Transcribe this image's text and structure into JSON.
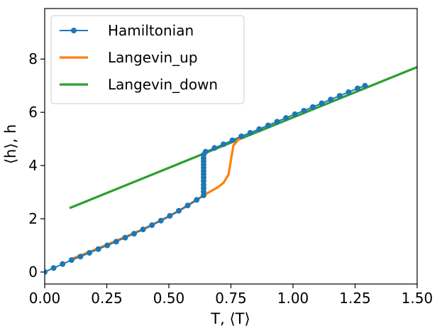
{
  "chart_data": {
    "type": "line",
    "title": "",
    "xlabel": "T, ⟨T⟩",
    "ylabel": "⟨h⟩, h",
    "xlim": [
      0.0,
      1.5
    ],
    "ylim": [
      -0.45,
      9.9
    ],
    "xticks": [
      0.0,
      0.25,
      0.5,
      0.75,
      1.0,
      1.25,
      1.5
    ],
    "xtick_labels": [
      "0.00",
      "0.25",
      "0.50",
      "0.75",
      "1.00",
      "1.25",
      "1.50"
    ],
    "yticks": [
      0,
      2,
      4,
      6,
      8
    ],
    "ytick_labels": [
      "0",
      "2",
      "4",
      "6",
      "8"
    ],
    "grid": false,
    "legend_position": "top-left",
    "series": [
      {
        "name": "Hamiltonian",
        "color": "#1f77b4",
        "marker": "circle",
        "x": [
          0.0,
          0.036,
          0.072,
          0.108,
          0.144,
          0.18,
          0.216,
          0.252,
          0.288,
          0.324,
          0.36,
          0.396,
          0.432,
          0.468,
          0.504,
          0.54,
          0.576,
          0.612,
          0.64,
          0.64,
          0.64,
          0.64,
          0.64,
          0.64,
          0.64,
          0.64,
          0.64,
          0.64,
          0.64,
          0.64,
          0.64,
          0.648,
          0.684,
          0.72,
          0.756,
          0.792,
          0.828,
          0.864,
          0.9,
          0.936,
          0.972,
          1.008,
          1.044,
          1.08,
          1.116,
          1.152,
          1.188,
          1.224,
          1.26,
          1.29
        ],
        "y": [
          0.0,
          0.15,
          0.3,
          0.45,
          0.58,
          0.72,
          0.86,
          1.0,
          1.14,
          1.29,
          1.44,
          1.6,
          1.76,
          1.93,
          2.11,
          2.3,
          2.5,
          2.71,
          2.88,
          3.02,
          3.15,
          3.28,
          3.42,
          3.55,
          3.68,
          3.8,
          3.92,
          4.04,
          4.16,
          4.27,
          4.4,
          4.52,
          4.66,
          4.8,
          4.95,
          5.1,
          5.23,
          5.37,
          5.51,
          5.65,
          5.79,
          5.93,
          6.06,
          6.2,
          6.34,
          6.48,
          6.62,
          6.76,
          6.9,
          7.0
        ]
      },
      {
        "name": "Langevin_up",
        "color": "#ff7f0e",
        "marker": "none",
        "x": [
          0.1,
          0.2,
          0.3,
          0.4,
          0.5,
          0.55,
          0.6,
          0.65,
          0.7,
          0.72,
          0.74,
          0.75,
          0.76,
          0.78,
          0.8
        ],
        "y": [
          0.46,
          0.83,
          1.22,
          1.62,
          2.09,
          2.35,
          2.64,
          2.93,
          3.2,
          3.35,
          3.65,
          4.2,
          4.75,
          4.98,
          5.05
        ]
      },
      {
        "name": "Langevin_down",
        "color": "#2ca02c",
        "marker": "none",
        "x": [
          0.1,
          1.5
        ],
        "y": [
          2.4,
          7.7
        ]
      }
    ]
  }
}
